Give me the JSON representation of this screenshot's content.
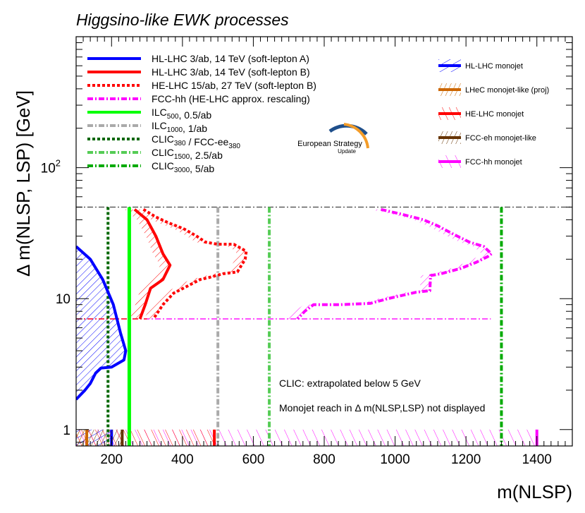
{
  "chart_data": {
    "type": "line",
    "title": "Higgsino-like EWK processes",
    "xlabel": "m(NLSP)",
    "ylabel": "Δ m(NLSP, LSP) [GeV]",
    "xlim": [
      100,
      1500
    ],
    "ylim_log": [
      0.75,
      1000
    ],
    "x_ticks": [
      200,
      400,
      600,
      800,
      1000,
      1200,
      1400
    ],
    "y_tick_labels": [
      {
        "v": 1,
        "label": "1"
      },
      {
        "v": 10,
        "label": "10"
      },
      {
        "v": 100,
        "label": "10",
        "sup": "2"
      }
    ],
    "logo": {
      "line1": "European Strategy",
      "line2": "Update"
    },
    "annotations": [
      {
        "id": "clic",
        "text": "CLIC: extrapolated below 5 GeV"
      },
      {
        "id": "monojet",
        "text": "Monojet reach in Δ m(NLSP,LSP) not displayed"
      }
    ],
    "legend_left": [
      {
        "id": "hl_a",
        "parts": [
          {
            "t": "HL-LHC 3/ab, 14 TeV (soft-lepton A)"
          }
        ],
        "color": "#0000ff",
        "style": "solid"
      },
      {
        "id": "hl_b",
        "parts": [
          {
            "t": "HL-LHC 3/ab, 14 TeV (soft-lepton B)"
          }
        ],
        "color": "#ff0000",
        "style": "solid"
      },
      {
        "id": "he_b",
        "parts": [
          {
            "t": "HE-LHC 15/ab, 27 TeV (soft-lepton B)"
          }
        ],
        "color": "#ff0000",
        "style": "dotted"
      },
      {
        "id": "fcc",
        "parts": [
          {
            "t": "FCC-hh (HE-LHC approx. rescaling)"
          }
        ],
        "color": "#ff00ff",
        "style": "dashdot"
      },
      {
        "id": "ilc500",
        "parts": [
          {
            "t": "ILC"
          },
          {
            "sub": "500"
          },
          {
            "t": ", 0.5/ab"
          }
        ],
        "color": "#00ff00",
        "style": "solid"
      },
      {
        "id": "ilc1000",
        "parts": [
          {
            "t": "ILC"
          },
          {
            "sub": "1000"
          },
          {
            "t": ", 1/ab"
          }
        ],
        "color": "#aaaaaa",
        "style": "dashdot"
      },
      {
        "id": "clic380",
        "parts": [
          {
            "t": "CLIC"
          },
          {
            "sub": "380"
          },
          {
            "t": " / FCC-ee"
          },
          {
            "sub": "380"
          }
        ],
        "color": "#006600",
        "style": "dotted"
      },
      {
        "id": "clic1500",
        "parts": [
          {
            "t": "CLIC"
          },
          {
            "sub": "1500"
          },
          {
            "t": ", 2.5/ab"
          }
        ],
        "color": "#55cc55",
        "style": "dashdot"
      },
      {
        "id": "clic3000",
        "parts": [
          {
            "t": "CLIC"
          },
          {
            "sub": "3000"
          },
          {
            "t": ", 5/ab"
          }
        ],
        "color": "#00aa00",
        "style": "dashdot"
      }
    ],
    "legend_right": [
      {
        "id": "hl_mono",
        "label": "HL-LHC monojet",
        "color": "#0000ff"
      },
      {
        "id": "lhec_mono",
        "label": "LHeC monojet-like (proj)",
        "color": "#cc6600"
      },
      {
        "id": "he_mono",
        "label": "HE-LHC monojet",
        "color": "#ff0000"
      },
      {
        "id": "fcceh_mono",
        "label": "FCC-eh monojet-like",
        "color": "#663300"
      },
      {
        "id": "fcchh_mono",
        "label": "FCC-hh monojet",
        "color": "#ff00ff"
      }
    ],
    "reference_lines": [
      {
        "id": "top_limit",
        "y": 50,
        "x": [
          100,
          1500
        ],
        "color": "#444444",
        "style": "dashdot"
      },
      {
        "id": "fcc_low",
        "y": 7,
        "x": [
          100,
          1270
        ],
        "color": "#ff00ff",
        "style": "dashdot"
      },
      {
        "id": "red_low",
        "y": 7,
        "x": [
          100,
          300
        ],
        "color": "#ff0000",
        "style": "dashdot"
      }
    ],
    "series": [
      {
        "id": "hl_a",
        "name": "HL-LHC 3/ab, 14 TeV (soft-lepton A)",
        "color": "#0000ff",
        "style": "solid",
        "hatch": "below",
        "x": [
          100,
          140,
          175,
          205,
          225,
          240,
          235,
          200,
          170,
          155,
          140,
          125,
          100
        ],
        "y": [
          25,
          20,
          14,
          9,
          5.5,
          4,
          3.4,
          3,
          2.95,
          2.7,
          2.25,
          2,
          1.7
        ]
      },
      {
        "id": "hl_b",
        "name": "HL-LHC 3/ab, 14 TeV (soft-lepton B)",
        "color": "#ff0000",
        "style": "solid",
        "hatch": "left",
        "x": [
          265,
          300,
          325,
          345,
          365,
          345,
          310,
          295,
          280
        ],
        "y": [
          48,
          40,
          30,
          22,
          18,
          14,
          12,
          9,
          7
        ]
      },
      {
        "id": "he_b",
        "name": "HE-LHC 15/ab, 27 TeV (soft-lepton B)",
        "color": "#ff0000",
        "style": "dotted",
        "hatch": "left",
        "x": [
          290,
          325,
          360,
          405,
          440,
          465,
          500,
          545,
          580,
          577,
          555,
          515,
          475,
          450,
          415,
          375,
          345,
          318
        ],
        "y": [
          48,
          42,
          38,
          34,
          30,
          27,
          26,
          26,
          23,
          20,
          16,
          15.5,
          14.5,
          14,
          12.5,
          11,
          9,
          7
        ]
      },
      {
        "id": "fcc",
        "name": "FCC-hh (HE-LHC approx. rescaling)",
        "color": "#ff00ff",
        "style": "dashdot",
        "hatch": "left",
        "x": [
          960,
          1020,
          1080,
          1120,
          1165,
          1210,
          1250,
          1272,
          1262,
          1230,
          1185,
          1130,
          1100,
          1098,
          1060,
          980,
          930,
          845,
          770,
          745,
          725
        ],
        "y": [
          48,
          44,
          40,
          36,
          31,
          27,
          25,
          22,
          21,
          19,
          17,
          15.5,
          15,
          11.5,
          11.2,
          10,
          9.2,
          9,
          9,
          8,
          7
        ]
      },
      {
        "id": "ilc500",
        "name": "ILC500, 0.5/ab",
        "color": "#00ff00",
        "style": "solid",
        "vx": 250
      },
      {
        "id": "ilc1000",
        "name": "ILC1000, 1/ab",
        "color": "#aaaaaa",
        "style": "dashdot",
        "vx": 500
      },
      {
        "id": "clic380",
        "name": "CLIC380 / FCC-ee380",
        "color": "#006600",
        "style": "dotted",
        "vx": 190
      },
      {
        "id": "clic1500",
        "name": "CLIC1500, 2.5/ab",
        "color": "#55cc55",
        "style": "dashdot",
        "vx": 645
      },
      {
        "id": "clic3000",
        "name": "CLIC3000, 5/ab",
        "color": "#00aa00",
        "style": "dashdot",
        "vx": 1300
      }
    ],
    "monojet_bands": [
      {
        "id": "hl_mono",
        "name": "HL-LHC monojet",
        "x": [
          100,
          200
        ],
        "color": "#0000ff"
      },
      {
        "id": "lhec_mono",
        "name": "LHeC monojet-like (proj)",
        "x": [
          100,
          130
        ],
        "color": "#cc6600"
      },
      {
        "id": "he_mono",
        "name": "HE-LHC monojet",
        "x": [
          100,
          490
        ],
        "color": "#ff0000"
      },
      {
        "id": "fcceh_mono",
        "name": "FCC-eh monojet-like",
        "x": [
          100,
          230
        ],
        "color": "#663300"
      },
      {
        "id": "fcchh_mono",
        "name": "FCC-hh monojet",
        "x": [
          100,
          1400
        ],
        "color": "#ff00ff"
      }
    ]
  }
}
